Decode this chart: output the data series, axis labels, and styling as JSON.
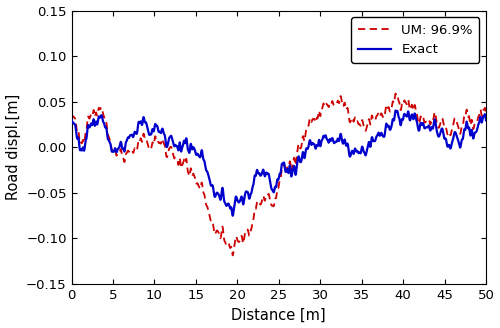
{
  "title": "",
  "xlabel": "Distance [m]",
  "ylabel": "Road displ.[m]",
  "xlim": [
    0,
    50
  ],
  "ylim": [
    -0.15,
    0.15
  ],
  "xticks": [
    0,
    5,
    10,
    15,
    20,
    25,
    30,
    35,
    40,
    45,
    50
  ],
  "yticks": [
    -0.15,
    -0.1,
    -0.05,
    0,
    0.05,
    0.1,
    0.15
  ],
  "exact_color": "#0000CD",
  "um_color": "#CC0000",
  "exact_linewidth": 1.6,
  "um_linewidth": 1.3,
  "legend_exact": "Exact",
  "legend_um": "UM: 96.9%",
  "figsize": [
    5.0,
    3.28
  ],
  "dpi": 100
}
